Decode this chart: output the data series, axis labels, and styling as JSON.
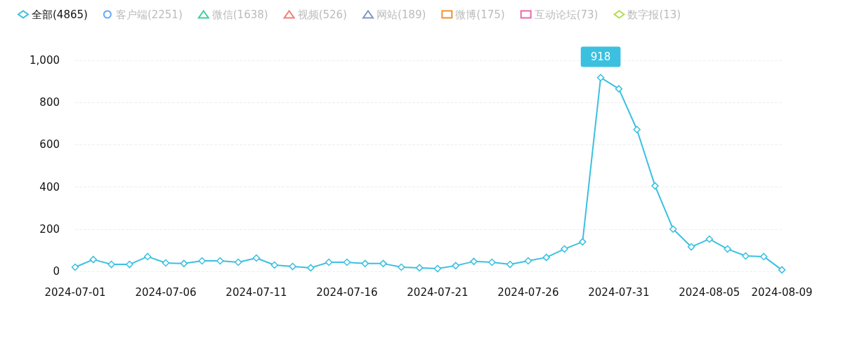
{
  "chart_data": {
    "type": "line",
    "categories": [
      "2024-07-01",
      null,
      null,
      null,
      null,
      "2024-07-06",
      null,
      null,
      null,
      null,
      "2024-07-11",
      null,
      null,
      null,
      null,
      "2024-07-16",
      null,
      null,
      null,
      null,
      "2024-07-21",
      null,
      null,
      null,
      null,
      "2024-07-26",
      null,
      null,
      null,
      null,
      "2024-07-31",
      null,
      null,
      null,
      null,
      "2024-08-05",
      null,
      null,
      null,
      "2024-08-09"
    ],
    "series": [
      {
        "name": "全部(4865)",
        "color": "#3bc0e0",
        "marker": "diamond",
        "values": [
          20,
          56,
          33,
          33,
          70,
          40,
          37,
          50,
          50,
          43,
          63,
          30,
          23,
          17,
          43,
          43,
          37,
          37,
          20,
          17,
          13,
          27,
          47,
          43,
          33,
          50,
          66,
          106,
          140,
          918,
          865,
          672,
          405,
          200,
          116,
          153,
          106,
          73,
          70,
          7
        ],
        "value_labels": [
          null,
          null,
          null,
          null,
          null,
          null,
          null,
          null,
          null,
          null,
          null,
          null,
          null,
          null,
          null,
          null,
          null,
          null,
          null,
          null,
          null,
          null,
          null,
          null,
          null,
          null,
          null,
          null,
          null,
          "918",
          null,
          null,
          null,
          null,
          null,
          null,
          null,
          null,
          null,
          null
        ]
      },
      {
        "name": "客户端(2251)",
        "color": "#6aa8f7",
        "marker": "circle",
        "values": [
          null,
          null,
          null,
          null,
          null,
          null,
          null,
          null,
          null,
          null,
          null,
          null,
          null,
          null,
          null,
          null,
          null,
          null,
          null,
          null,
          null,
          null,
          null,
          null,
          null,
          null,
          null,
          null,
          null,
          null,
          null,
          null,
          null,
          null,
          null,
          null,
          null,
          null,
          null,
          null
        ]
      },
      {
        "name": "微信(1638)",
        "color": "#3fd09a",
        "marker": "triangle",
        "values": [
          null,
          null,
          null,
          null,
          null,
          null,
          null,
          null,
          null,
          null,
          null,
          null,
          null,
          null,
          null,
          null,
          null,
          null,
          null,
          null,
          null,
          null,
          null,
          null,
          null,
          null,
          null,
          null,
          null,
          null,
          null,
          null,
          null,
          null,
          null,
          null,
          null,
          null,
          null,
          null
        ]
      },
      {
        "name": "视频(526)",
        "color": "#ef7f7a",
        "marker": "triangle",
        "values": [
          null,
          null,
          null,
          null,
          null,
          null,
          null,
          null,
          null,
          null,
          null,
          null,
          null,
          null,
          null,
          null,
          null,
          null,
          null,
          null,
          null,
          null,
          null,
          null,
          null,
          null,
          null,
          null,
          null,
          null,
          null,
          null,
          null,
          null,
          null,
          null,
          null,
          null,
          null,
          null
        ]
      },
      {
        "name": "网站(189)",
        "color": "#8097c0",
        "marker": "triangle",
        "values": [
          null,
          null,
          null,
          null,
          null,
          null,
          null,
          null,
          null,
          null,
          null,
          null,
          null,
          null,
          null,
          null,
          null,
          null,
          null,
          null,
          null,
          null,
          null,
          null,
          null,
          null,
          null,
          null,
          null,
          null,
          null,
          null,
          null,
          null,
          null,
          null,
          null,
          null,
          null,
          null
        ]
      },
      {
        "name": "微博(175)",
        "color": "#f0922f",
        "marker": "square",
        "values": [
          null,
          null,
          null,
          null,
          null,
          null,
          null,
          null,
          null,
          null,
          null,
          null,
          null,
          null,
          null,
          null,
          null,
          null,
          null,
          null,
          null,
          null,
          null,
          null,
          null,
          null,
          null,
          null,
          null,
          null,
          null,
          null,
          null,
          null,
          null,
          null,
          null,
          null,
          null,
          null
        ]
      },
      {
        "name": "互动论坛(73)",
        "color": "#e86aa8",
        "marker": "square",
        "values": [
          null,
          null,
          null,
          null,
          null,
          null,
          null,
          null,
          null,
          null,
          null,
          null,
          null,
          null,
          null,
          null,
          null,
          null,
          null,
          null,
          null,
          null,
          null,
          null,
          null,
          null,
          null,
          null,
          null,
          null,
          null,
          null,
          null,
          null,
          null,
          null,
          null,
          null,
          null,
          null
        ]
      },
      {
        "name": "数字报(13)",
        "color": "#b4dc4e",
        "marker": "diamond",
        "values": [
          null,
          null,
          null,
          null,
          null,
          null,
          null,
          null,
          null,
          null,
          null,
          null,
          null,
          null,
          null,
          null,
          null,
          null,
          null,
          null,
          null,
          null,
          null,
          null,
          null,
          null,
          null,
          null,
          null,
          null,
          null,
          null,
          null,
          null,
          null,
          null,
          null,
          null,
          null,
          null
        ]
      }
    ],
    "ylim": [
      0,
      1000
    ],
    "yticks": [
      0,
      200,
      400,
      600,
      800,
      {
        "value": 1000,
        "label": "1,000"
      }
    ],
    "grid": "y",
    "legend": "top left"
  }
}
